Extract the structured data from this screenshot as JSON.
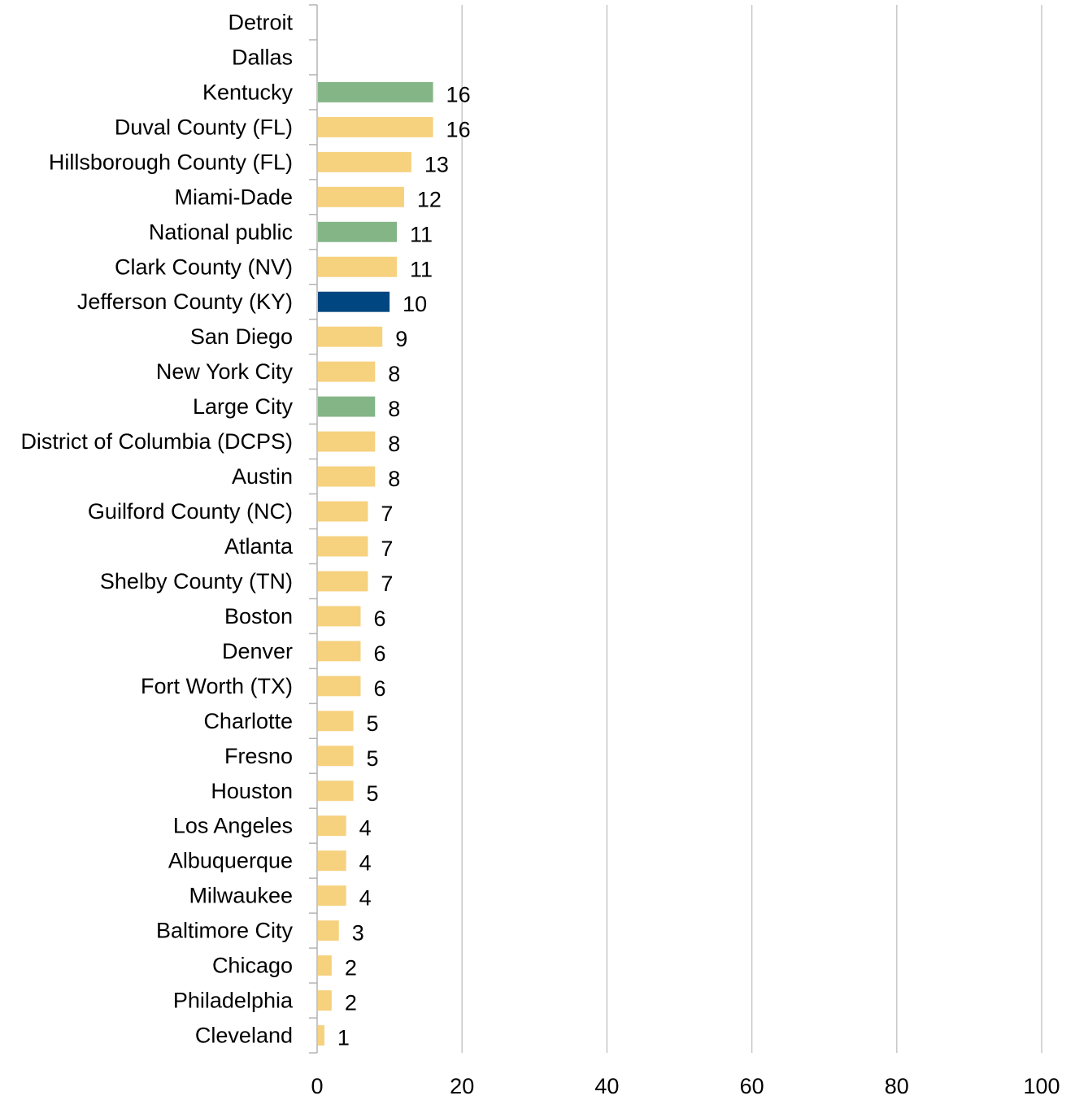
{
  "chart_data": {
    "type": "bar",
    "orientation": "horizontal",
    "title": "",
    "xlabel": "",
    "ylabel": "",
    "xlim": [
      0,
      100
    ],
    "x_ticks": [
      "0",
      "20",
      "40",
      "60",
      "80",
      "100"
    ],
    "grid": "vertical",
    "legend": "none",
    "colors": {
      "district": "#F6D17E",
      "benchmark": "#84B586",
      "highlight": "#004680"
    },
    "categories": [
      "Detroit",
      "Dallas",
      "Kentucky",
      "Duval County (FL)",
      "Hillsborough County (FL)",
      "Miami-Dade",
      "National public",
      "Clark County (NV)",
      "Jefferson County (KY)",
      "San Diego",
      "New York City",
      "Large City",
      "District of Columbia (DCPS)",
      "Austin",
      "Guilford County (NC)",
      "Atlanta",
      "Shelby County (TN)",
      "Boston",
      "Denver",
      "Fort Worth (TX)",
      "Charlotte",
      "Fresno",
      "Houston",
      "Los Angeles",
      "Albuquerque",
      "Milwaukee",
      "Baltimore City",
      "Chicago",
      "Philadelphia",
      "Cleveland"
    ],
    "values": [
      null,
      null,
      16,
      16,
      13,
      12,
      11,
      11,
      10,
      9,
      8,
      8,
      8,
      8,
      7,
      7,
      7,
      6,
      6,
      6,
      5,
      5,
      5,
      4,
      4,
      4,
      3,
      2,
      2,
      1
    ],
    "value_labels": [
      "",
      "",
      "16",
      "16",
      "13",
      "12",
      "11",
      "11",
      "10",
      "9",
      "8",
      "8",
      "8",
      "8",
      "7",
      "7",
      "7",
      "6",
      "6",
      "6",
      "5",
      "5",
      "5",
      "4",
      "4",
      "4",
      "3",
      "2",
      "2",
      "1"
    ],
    "bar_groups": [
      "district",
      "district",
      "benchmark",
      "district",
      "district",
      "district",
      "benchmark",
      "district",
      "highlight",
      "district",
      "district",
      "benchmark",
      "district",
      "district",
      "district",
      "district",
      "district",
      "district",
      "district",
      "district",
      "district",
      "district",
      "district",
      "district",
      "district",
      "district",
      "district",
      "district",
      "district",
      "district"
    ]
  }
}
